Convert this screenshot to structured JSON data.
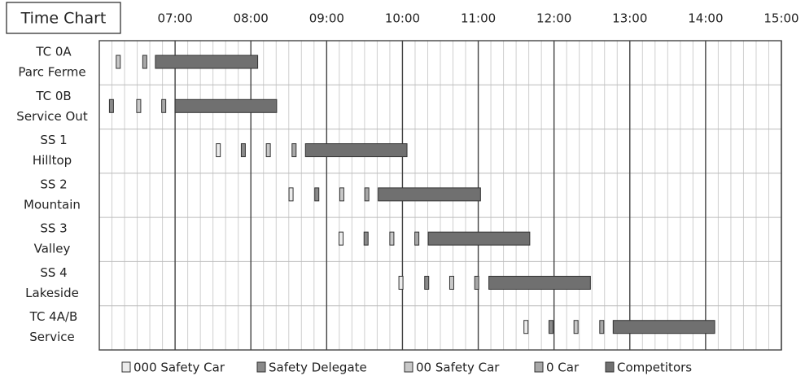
{
  "chart_data": {
    "type": "gantt",
    "title": "Time Chart",
    "categories": [
      [
        "TC 0A",
        "Parc Ferme"
      ],
      [
        "TC 0B",
        "Service Out"
      ],
      [
        "SS 1",
        "Hilltop"
      ],
      [
        "SS 2",
        "Mountain"
      ],
      [
        "SS 3",
        "Valley"
      ],
      [
        "SS 4",
        "Lakeside"
      ],
      [
        "TC 4A/B",
        "Service"
      ]
    ],
    "xlim": [
      6,
      15
    ],
    "xticks": [
      {
        "value": 7,
        "label": "07:00"
      },
      {
        "value": 8,
        "label": "08:00"
      },
      {
        "value": 9,
        "label": "09:00"
      },
      {
        "value": 10,
        "label": "10:00"
      },
      {
        "value": 11,
        "label": "11:00"
      },
      {
        "value": 12,
        "label": "12:00"
      },
      {
        "value": 13,
        "label": "13:00"
      },
      {
        "value": 14,
        "label": "14:00"
      },
      {
        "value": 15,
        "label": "15:00"
      }
    ],
    "grid": true,
    "legend": "bottom",
    "series": [
      {
        "name": "000 Safety Car",
        "color": "#ececec",
        "values": [
          null,
          null,
          7.57,
          8.53,
          9.19,
          9.98,
          11.63
        ]
      },
      {
        "name": "Safety Delegate",
        "color": "#8a8a8a",
        "values": [
          null,
          6.16,
          7.9,
          8.87,
          9.52,
          10.32,
          11.96
        ]
      },
      {
        "name": "00 Safety Car",
        "color": "#c8c8c8",
        "values": [
          6.25,
          6.52,
          8.23,
          9.2,
          9.86,
          10.65,
          12.29
        ]
      },
      {
        "name": "0 Car",
        "color": "#a8a8a8",
        "values": [
          6.6,
          6.85,
          8.57,
          9.53,
          10.19,
          10.98,
          12.63
        ]
      },
      {
        "name": "Competitors",
        "color": "#707070",
        "values": [
          6.74,
          7.0,
          8.72,
          9.68,
          10.34,
          11.14,
          12.78
        ],
        "end": [
          8.09,
          8.34,
          10.06,
          11.03,
          11.68,
          12.48,
          14.12
        ]
      }
    ]
  }
}
